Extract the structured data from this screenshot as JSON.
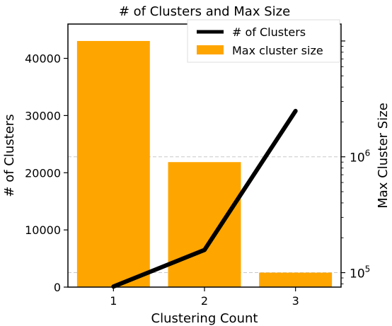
{
  "chart_data": {
    "type": "bar",
    "title": "# of Clusters and Max Size",
    "xlabel": "Clustering Count",
    "ylabel_left": "# of Clusters",
    "ylabel_right": "Max Cluster Size",
    "categories": [
      "1",
      "2",
      "3"
    ],
    "series": [
      {
        "name": "# of Clusters",
        "kind": "line",
        "axis": "left",
        "color": "#000000",
        "values": [
          100,
          6500,
          30800
        ]
      },
      {
        "name": "Max cluster size",
        "kind": "bar",
        "axis": "right",
        "color": "#FFA500",
        "values": [
          10000000,
          900000,
          100000
        ]
      }
    ],
    "ylim_left": [
      0,
      46000
    ],
    "yticks_left": [
      "0",
      "10000",
      "20000",
      "30000",
      "40000"
    ],
    "yscale_right": "log",
    "ylim_right": [
      75000,
      14000000
    ],
    "yticks_right": [
      {
        "base": "10",
        "exp": "5",
        "value": 100000
      },
      {
        "base": "10",
        "exp": "6",
        "value": 1000000
      }
    ],
    "grid": "dashed horizontal lines at right-axis major ticks",
    "legend": {
      "placement": "top-right",
      "entries": [
        "# of Clusters",
        "Max cluster size"
      ]
    }
  }
}
